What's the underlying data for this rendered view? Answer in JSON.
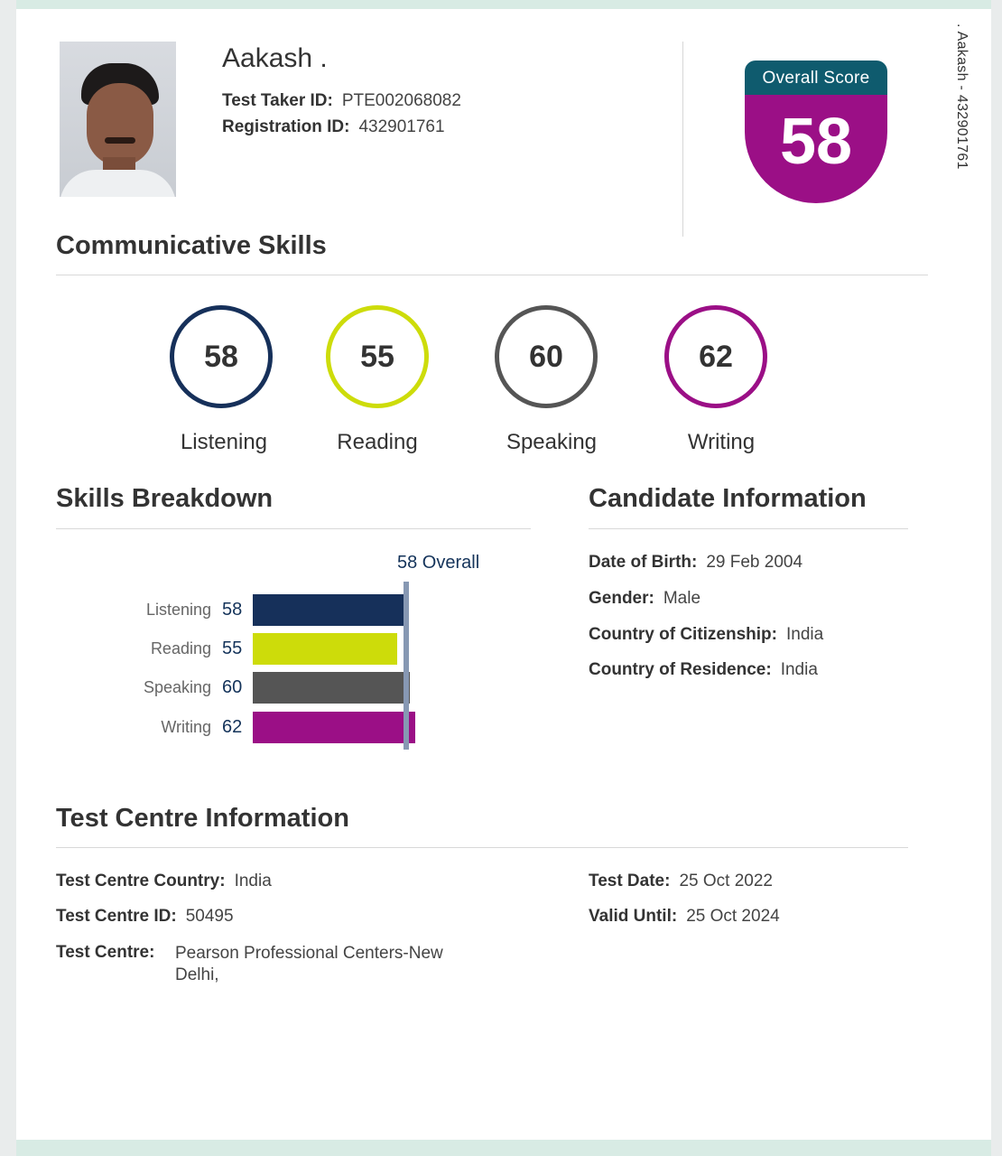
{
  "candidate": {
    "name": "Aakash .",
    "test_taker_label": "Test Taker ID:",
    "test_taker_id": "PTE002068082",
    "registration_label": "Registration ID:",
    "registration_id": "432901761",
    "side_text": ". Aakash - 432901761"
  },
  "overall": {
    "label": "Overall Score",
    "score": "58",
    "color": "#9b0f86",
    "header_color": "#0f5b6e"
  },
  "communicative": {
    "title": "Communicative Skills",
    "skills": [
      {
        "label": "Listening",
        "score": "58",
        "color": "#16305a"
      },
      {
        "label": "Reading",
        "score": "55",
        "color": "#cddc0a"
      },
      {
        "label": "Speaking",
        "score": "60",
        "color": "#555555"
      },
      {
        "label": "Writing",
        "score": "62",
        "color": "#9b0f86"
      }
    ]
  },
  "breakdown": {
    "title": "Skills Breakdown",
    "overall_label": "58 Overall"
  },
  "chart_data": {
    "type": "bar",
    "orientation": "horizontal",
    "categories": [
      "Listening",
      "Reading",
      "Speaking",
      "Writing"
    ],
    "values": [
      58,
      55,
      60,
      62
    ],
    "colors": [
      "#16305a",
      "#cddc0a",
      "#555555",
      "#9b0f86"
    ],
    "reference_line": {
      "value": 58,
      "label": "58 Overall"
    }
  },
  "candidate_info": {
    "title": "Candidate Information",
    "rows": [
      {
        "label": "Date of Birth:",
        "value": "29 Feb 2004"
      },
      {
        "label": "Gender:",
        "value": "Male"
      },
      {
        "label": "Country of Citizenship:",
        "value": "India"
      },
      {
        "label": "Country of Residence:",
        "value": "India"
      }
    ]
  },
  "test_centre": {
    "title": "Test Centre Information",
    "country_label": "Test Centre Country:",
    "country": "India",
    "id_label": "Test Centre ID:",
    "id": "50495",
    "centre_label": "Test Centre:",
    "centre_line1": "Pearson Professional Centers-New",
    "centre_line2": "Delhi,",
    "date_label": "Test Date:",
    "date": "25 Oct 2022",
    "valid_label": "Valid Until:",
    "valid": "25 Oct 2024"
  }
}
